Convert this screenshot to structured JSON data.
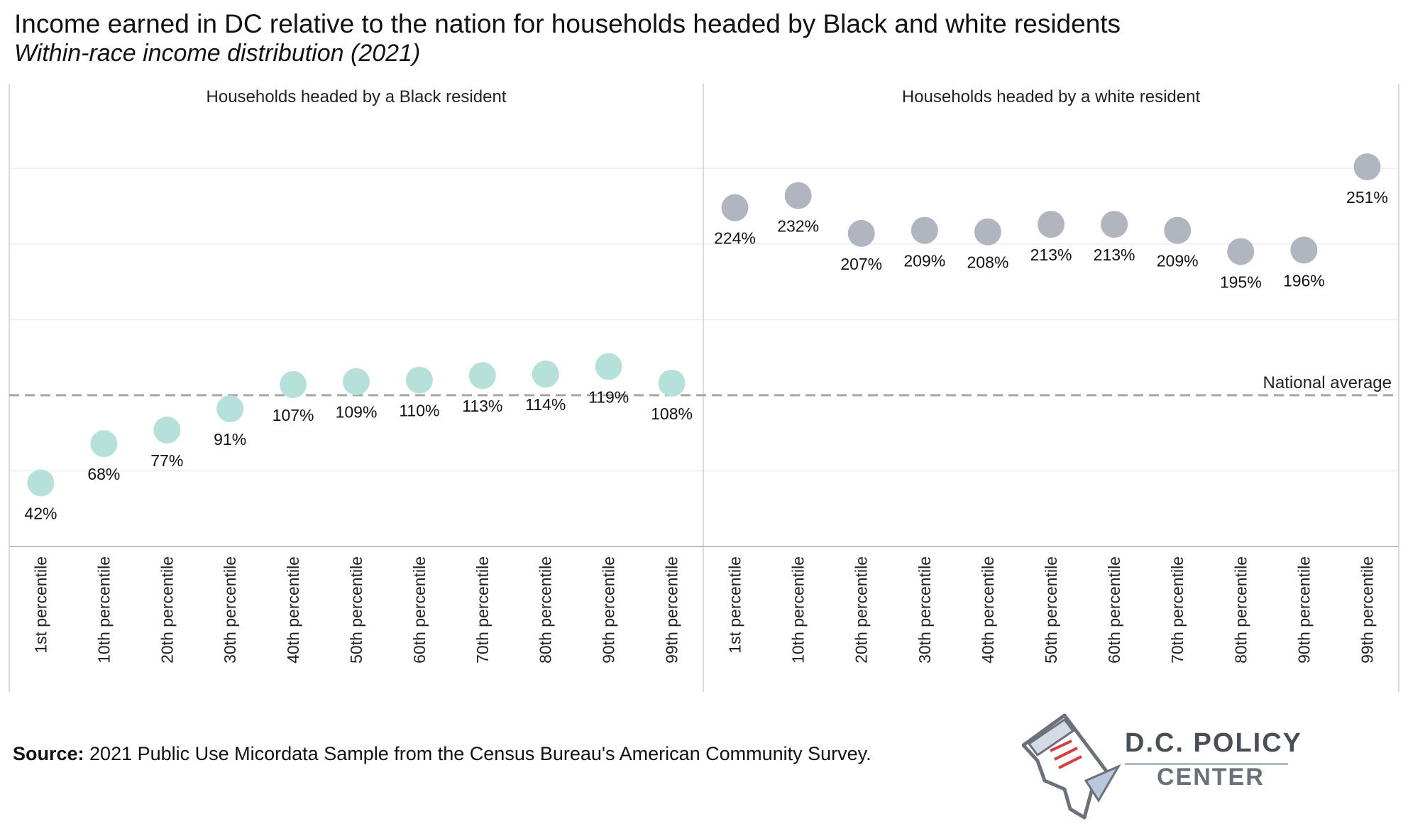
{
  "header": {
    "title": "Income earned in DC relative to the nation for households headed by Black and white residents",
    "subtitle": "Within-race income distribution  (2021)"
  },
  "chart_data": {
    "type": "scatter",
    "categories": [
      "1st percentile",
      "10th percentile",
      "20th percentile",
      "30th percentile",
      "40th percentile",
      "50th percentile",
      "60th percentile",
      "70th percentile",
      "80th percentile",
      "90th percentile",
      "99th percentile"
    ],
    "panels": [
      {
        "title": "Households headed by a Black resident",
        "color": "#b6e1da",
        "values": [
          42,
          68,
          77,
          91,
          107,
          109,
          110,
          113,
          114,
          119,
          108
        ],
        "labels": [
          "42%",
          "68%",
          "77%",
          "91%",
          "107%",
          "109%",
          "110%",
          "113%",
          "114%",
          "119%",
          "108%"
        ]
      },
      {
        "title": "Households headed by a white resident",
        "color": "#b0b5bf",
        "values": [
          224,
          232,
          207,
          209,
          208,
          213,
          213,
          209,
          195,
          196,
          251
        ],
        "labels": [
          "224%",
          "232%",
          "207%",
          "209%",
          "208%",
          "213%",
          "213%",
          "209%",
          "195%",
          "196%",
          "251%"
        ]
      }
    ],
    "reference_line": {
      "value": 100,
      "label": "National average",
      "color": "#a6a6a6"
    },
    "ylim": [
      0,
      290
    ],
    "grid": true
  },
  "footer": {
    "source_label": "Source:",
    "source_text": " 2021 Public Use Micordata Sample from the Census Bureau's American Community Survey."
  },
  "logo": {
    "line1": "D.C. POLICY",
    "line2": "CENTER"
  }
}
